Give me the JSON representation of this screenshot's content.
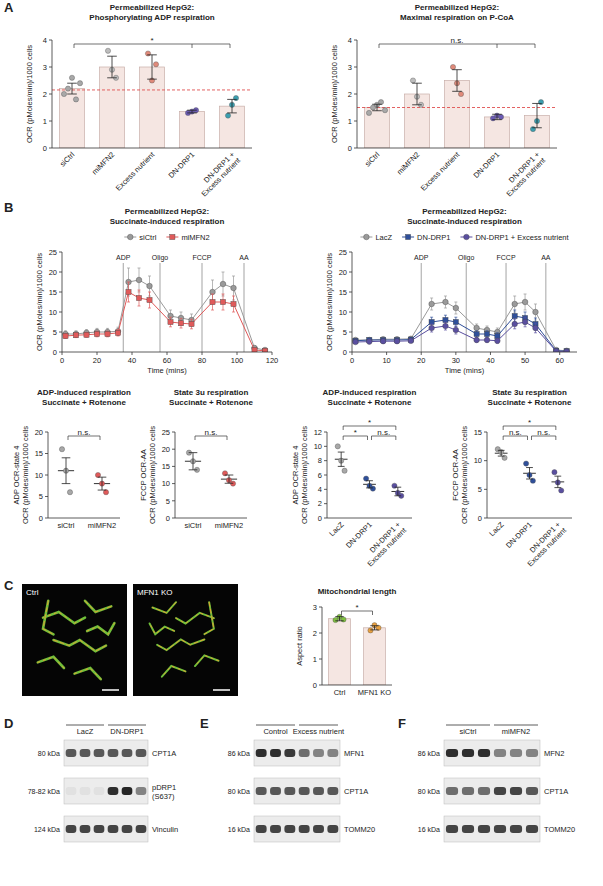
{
  "panel_labels": [
    "A",
    "B",
    "C",
    "D",
    "E",
    "F"
  ],
  "chart_data": [
    {
      "type": "bar",
      "title": "Permeabilized HepG2:",
      "subtitle": "Phosphorylating ADP respiration",
      "ylabel": "OCR (pMoles/min)/1000 cells",
      "categories": [
        "siCtrl",
        "miMFN2",
        "Excess nutrient",
        "DN-DRP1",
        "DN-DRP1 + Excess nutrient"
      ],
      "values": [
        2.2,
        3.0,
        3.0,
        1.35,
        1.55
      ],
      "errors": [
        0.2,
        0.4,
        0.45,
        0.05,
        0.25
      ],
      "points": [
        [
          2.0,
          2.2,
          2.6,
          1.8,
          2.4
        ],
        [
          3.6,
          2.9,
          2.6
        ],
        [
          3.5,
          2.5,
          3.1
        ],
        [
          1.3,
          1.35,
          1.4
        ],
        [
          1.2,
          1.6,
          1.85
        ]
      ],
      "point_colors": [
        "#a8a8a8",
        "#bdbdbd",
        "#e08a7a",
        "#6b5bb5",
        "#3b9fb0"
      ],
      "color": "#f5e6e2",
      "reference_line": 2.15,
      "ylim": [
        0,
        4
      ],
      "yticks": [
        0,
        1,
        2,
        3,
        4
      ],
      "annotations": [
        {
          "text": "*",
          "between": [
            0,
            3,
            4
          ]
        }
      ]
    },
    {
      "type": "bar",
      "title": "Permeabilized HepG2:",
      "subtitle": "Maximal respiration on P-CoA",
      "ylabel": "OCR (pMoles/min)/1000 cells",
      "categories": [
        "siCtrl",
        "miMFN2",
        "Excess nutrient",
        "DN-DRP1",
        "DN-DRP1 + Excess nutrient"
      ],
      "values": [
        1.5,
        2.0,
        2.5,
        1.15,
        1.2
      ],
      "errors": [
        0.12,
        0.4,
        0.4,
        0.1,
        0.45
      ],
      "points": [
        [
          1.3,
          1.5,
          1.6,
          1.7,
          1.4
        ],
        [
          2.5,
          1.9,
          1.6
        ],
        [
          3.0,
          2.4,
          2.0
        ],
        [
          1.1,
          1.2,
          1.15
        ],
        [
          0.7,
          1.0,
          1.7
        ]
      ],
      "point_colors": [
        "#a8a8a8",
        "#bdbdbd",
        "#e08a7a",
        "#6b5bb5",
        "#3b9fb0"
      ],
      "color": "#f5e6e2",
      "reference_line": 1.5,
      "ylim": [
        0,
        4
      ],
      "yticks": [
        0,
        1,
        2,
        3,
        4
      ],
      "annotations": [
        {
          "text": "n.s.",
          "between": [
            0,
            3,
            4
          ]
        }
      ]
    },
    {
      "type": "line",
      "title": "Permeabilized HepG2:",
      "subtitle": "Succinate-induced respiration",
      "xlabel": "Time (mins)",
      "ylabel": "OCR (pMoles/min)/1000 cells",
      "legend": "top",
      "x": [
        2,
        8,
        14,
        20,
        26,
        32,
        38,
        44,
        50,
        62,
        68,
        74,
        86,
        92,
        98,
        110,
        116
      ],
      "series": [
        {
          "name": "siCtrl",
          "color": "#9a9a9a",
          "marker": "circle",
          "values": [
            4.5,
            4.5,
            4.8,
            5.0,
            5.0,
            5.2,
            17.5,
            18.0,
            16.5,
            9.0,
            8.5,
            8.0,
            15.0,
            17.0,
            16.0,
            1.0,
            0.5
          ],
          "errors": [
            0.8,
            0.8,
            0.8,
            0.9,
            0.9,
            1.0,
            3.5,
            3.0,
            2.5,
            1.5,
            1.5,
            1.5,
            3.0,
            3.0,
            3.0,
            0.5,
            0.3
          ]
        },
        {
          "name": "miMFN2",
          "color": "#e05a5a",
          "marker": "square",
          "values": [
            4.0,
            4.2,
            4.3,
            4.5,
            4.5,
            4.8,
            15.0,
            13.5,
            13.0,
            7.5,
            7.2,
            7.0,
            12.5,
            12.5,
            12.0,
            0.5,
            0.3
          ],
          "errors": [
            0.6,
            0.6,
            0.6,
            0.7,
            0.7,
            0.8,
            2.5,
            2.0,
            2.0,
            1.2,
            1.2,
            1.2,
            2.0,
            2.0,
            2.0,
            0.3,
            0.2
          ]
        }
      ],
      "annotations": [
        {
          "text": "ADP",
          "x": 35
        },
        {
          "text": "Oligo",
          "x": 56
        },
        {
          "text": "FCCP",
          "x": 80
        },
        {
          "text": "AA",
          "x": 104
        }
      ],
      "xlim": [
        0,
        120
      ],
      "xticks": [
        0,
        20,
        40,
        60,
        80,
        100,
        120
      ],
      "ylim": [
        0,
        25
      ],
      "yticks": [
        0,
        5,
        10,
        15,
        20,
        25
      ]
    },
    {
      "type": "line",
      "title": "Permeabilized HepG2:",
      "subtitle": "Succinate-induced respiration",
      "ylabel": "OCR (pMoles/min)/1000 cells",
      "xlabel": "Time (mins)",
      "legend": "top",
      "x": [
        1,
        5,
        9,
        13,
        17,
        23,
        27,
        30,
        36,
        39,
        42,
        47,
        50,
        53,
        59,
        62
      ],
      "series": [
        {
          "name": "LacZ",
          "color": "#9a9a9a",
          "marker": "circle",
          "values": [
            3.0,
            3.0,
            3.2,
            3.2,
            3.3,
            12.0,
            12.5,
            11.0,
            6.0,
            5.5,
            5.0,
            12.0,
            12.5,
            10.0,
            0.5,
            0.3
          ],
          "errors": [
            0.3,
            0.3,
            0.3,
            0.3,
            0.3,
            1.5,
            1.5,
            1.5,
            1.0,
            1.0,
            1.0,
            2.0,
            2.0,
            2.0,
            0.2,
            0.2
          ]
        },
        {
          "name": "DN-DRP1",
          "color": "#2f4f9a",
          "marker": "square",
          "values": [
            2.8,
            3.0,
            3.0,
            3.0,
            3.1,
            7.5,
            8.0,
            7.5,
            4.5,
            4.5,
            4.0,
            9.0,
            8.5,
            7.0,
            0.3,
            0.2
          ],
          "errors": [
            0.3,
            0.3,
            0.3,
            0.3,
            0.3,
            1.2,
            1.2,
            1.2,
            0.8,
            0.8,
            0.8,
            1.5,
            1.5,
            1.5,
            0.2,
            0.2
          ]
        },
        {
          "name": "DN-DRP1 + Excess nutrient",
          "color": "#5a4fa0",
          "marker": "circle",
          "values": [
            2.5,
            2.6,
            2.7,
            2.7,
            2.8,
            6.0,
            6.5,
            5.5,
            3.0,
            3.0,
            2.8,
            7.0,
            7.5,
            6.0,
            0.2,
            0.1
          ],
          "errors": [
            0.3,
            0.3,
            0.3,
            0.3,
            0.3,
            1.0,
            1.0,
            1.0,
            0.6,
            0.6,
            0.6,
            1.2,
            1.2,
            1.2,
            0.1,
            0.1
          ]
        }
      ],
      "annotations": [
        {
          "text": "ADP",
          "x": 20
        },
        {
          "text": "Oligo",
          "x": 33
        },
        {
          "text": "FCCP",
          "x": 44.5
        },
        {
          "text": "AA",
          "x": 56
        }
      ],
      "xlim": [
        0,
        65
      ],
      "xticks": [
        0,
        10,
        20,
        30,
        40,
        50,
        60
      ],
      "ylim": [
        0,
        25
      ],
      "yticks": [
        0,
        5,
        10,
        15,
        20,
        25
      ]
    },
    {
      "type": "scatter",
      "title": "ADP-induced respiration",
      "subtitle": "Succinate + Rotenone",
      "ylabel": [
        "ADP OCR-state 4",
        "OCR (pMoles/min)/1000 cells"
      ],
      "categories": [
        "siCtrl",
        "miMFN2"
      ],
      "values": [
        11,
        8
      ],
      "errors": [
        3,
        1.5
      ],
      "points": [
        [
          16,
          11,
          6
        ],
        [
          10,
          8,
          6
        ]
      ],
      "point_colors": [
        "#a8a8a8",
        "#e05a5a"
      ],
      "ylim": [
        0,
        20
      ],
      "yticks": [
        0,
        5,
        10,
        15,
        20
      ],
      "annotations": [
        {
          "text": "n.s.",
          "between": [
            0,
            1
          ]
        }
      ]
    },
    {
      "type": "scatter",
      "title": "State 3u respiration",
      "subtitle": "Succinate + Rotenone",
      "ylabel": [
        "FCCP OCR-AA",
        "OCR (pMoles/min)/1000 cells"
      ],
      "categories": [
        "siCtrl",
        "miMFN2"
      ],
      "values": [
        16.5,
        11.3
      ],
      "errors": [
        2.5,
        1.2
      ],
      "points": [
        [
          19,
          16.5,
          14
        ],
        [
          13,
          11,
          10
        ]
      ],
      "point_colors": [
        "#a8a8a8",
        "#e05a5a"
      ],
      "ylim": [
        0,
        25
      ],
      "yticks": [
        0,
        5,
        10,
        15,
        20,
        25
      ],
      "annotations": [
        {
          "text": "n.s.",
          "between": [
            0,
            1
          ]
        }
      ]
    },
    {
      "type": "scatter",
      "title": "ADP-induced respiration",
      "subtitle": "Succinate + Rotenone",
      "ylabel": [
        "ADP OCR-state 4",
        "OCR (pMoles/min)/1000 cells"
      ],
      "categories": [
        "LacZ",
        "DN-DRP1",
        "DN-DRP1 + Excess nutrient"
      ],
      "values": [
        8.2,
        4.7,
        3.7
      ],
      "errors": [
        1,
        0.5,
        0.6
      ],
      "points": [
        [
          10,
          8,
          6.6
        ],
        [
          5.5,
          4.5,
          4.1
        ],
        [
          4.5,
          3.5,
          3.1
        ]
      ],
      "point_colors": [
        "#a8a8a8",
        "#2f4f9a",
        "#5a4fa0"
      ],
      "ylim": [
        0,
        12
      ],
      "yticks": [
        0,
        2,
        4,
        6,
        8,
        10,
        12
      ],
      "annotations": [
        {
          "text": "*",
          "between": [
            0,
            1
          ]
        },
        {
          "text": "n.s.",
          "between": [
            1,
            2
          ]
        },
        {
          "text": "*",
          "between": [
            0,
            2
          ]
        }
      ]
    },
    {
      "type": "scatter",
      "title": "State 3u respiration",
      "subtitle": "Succinate + Rotenone",
      "ylabel": [
        "FCCP OCR-AA",
        "OCR (pMoles/min)/1000 cells"
      ],
      "categories": [
        "LacZ",
        "DN-DRP1",
        "DN-DRP1 + Excess nutrient"
      ],
      "values": [
        11.3,
        7.8,
        6.3
      ],
      "errors": [
        0.5,
        1,
        1
      ],
      "points": [
        [
          12,
          11.5,
          10.5
        ],
        [
          9.5,
          7.5,
          6.5
        ],
        [
          8,
          6.2,
          4.8
        ]
      ],
      "point_colors": [
        "#a8a8a8",
        "#2f4f9a",
        "#5a4fa0"
      ],
      "ylim": [
        0,
        15
      ],
      "yticks": [
        0,
        5,
        10,
        15
      ],
      "annotations": [
        {
          "text": "n.s.",
          "between": [
            0,
            1
          ]
        },
        {
          "text": "n.s.",
          "between": [
            1,
            2
          ]
        },
        {
          "text": "*",
          "between": [
            0,
            2
          ]
        }
      ]
    },
    {
      "type": "bar",
      "title": "Mitochondrial length",
      "ylabel": "Aspect ratio",
      "categories": [
        "Ctrl",
        "MFN1 KO"
      ],
      "values": [
        2.55,
        2.2
      ],
      "errors": [
        0.08,
        0.08
      ],
      "points": [
        [
          2.5,
          2.62,
          2.52
        ],
        [
          2.1,
          2.3,
          2.2
        ]
      ],
      "point_colors": [
        "#7fbf3f",
        "#e8a040"
      ],
      "color": "#f5e6e2",
      "ylim": [
        0,
        3
      ],
      "yticks": [
        0,
        1,
        2,
        3
      ],
      "annotations": [
        {
          "text": "*",
          "between": [
            0,
            1
          ]
        }
      ]
    }
  ],
  "images": [
    {
      "label": "Ctrl"
    },
    {
      "label": "MFN1 KO"
    }
  ],
  "blots": [
    {
      "lanes": [
        {
          "label": "LacZ",
          "count": 3
        },
        {
          "label": "DN-DRP1",
          "count": 3
        }
      ],
      "rows": [
        {
          "mw": "80 kDa",
          "protein": "CPT1A",
          "intensity": [
            0.7,
            0.7,
            0.7,
            0.7,
            0.7,
            0.7
          ]
        },
        {
          "mw": "78-82 kDa",
          "protein": [
            "pDRP1",
            "(S637)"
          ],
          "intensity": [
            0.05,
            0.05,
            0.05,
            0.9,
            0.95,
            0.5
          ]
        },
        {
          "mw": "124 kDa",
          "protein": "Vinculin",
          "intensity": [
            0.8,
            0.8,
            0.8,
            0.8,
            0.8,
            0.8
          ]
        }
      ]
    },
    {
      "lanes": [
        {
          "label": "Control",
          "count": 3
        },
        {
          "label": "Excess nutrient",
          "count": 3
        }
      ],
      "rows": [
        {
          "mw": "86 kDa",
          "protein": "MFN1",
          "intensity": [
            0.9,
            0.9,
            0.85,
            0.6,
            0.5,
            0.5
          ]
        },
        {
          "mw": "80 kDa",
          "protein": "CPT1A",
          "intensity": [
            0.7,
            0.7,
            0.7,
            0.7,
            0.7,
            0.7
          ]
        },
        {
          "mw": "16 kDa",
          "protein": "TOMM20",
          "intensity": [
            0.8,
            0.8,
            0.8,
            0.8,
            0.8,
            0.8
          ]
        }
      ]
    },
    {
      "lanes": [
        {
          "label": "siCtrl",
          "count": 3
        },
        {
          "label": "miMFN2",
          "count": 3
        }
      ],
      "rows": [
        {
          "mw": "86 kDa",
          "protein": "MFN2",
          "intensity": [
            0.9,
            0.9,
            0.9,
            0.5,
            0.5,
            0.5
          ]
        },
        {
          "mw": "80 kDa",
          "protein": "CPT1A",
          "intensity": [
            0.6,
            0.6,
            0.6,
            0.8,
            0.8,
            0.7
          ]
        },
        {
          "mw": "16 kDa",
          "protein": "TOMM20",
          "intensity": [
            0.8,
            0.8,
            0.8,
            0.8,
            0.8,
            0.8
          ]
        }
      ]
    }
  ]
}
